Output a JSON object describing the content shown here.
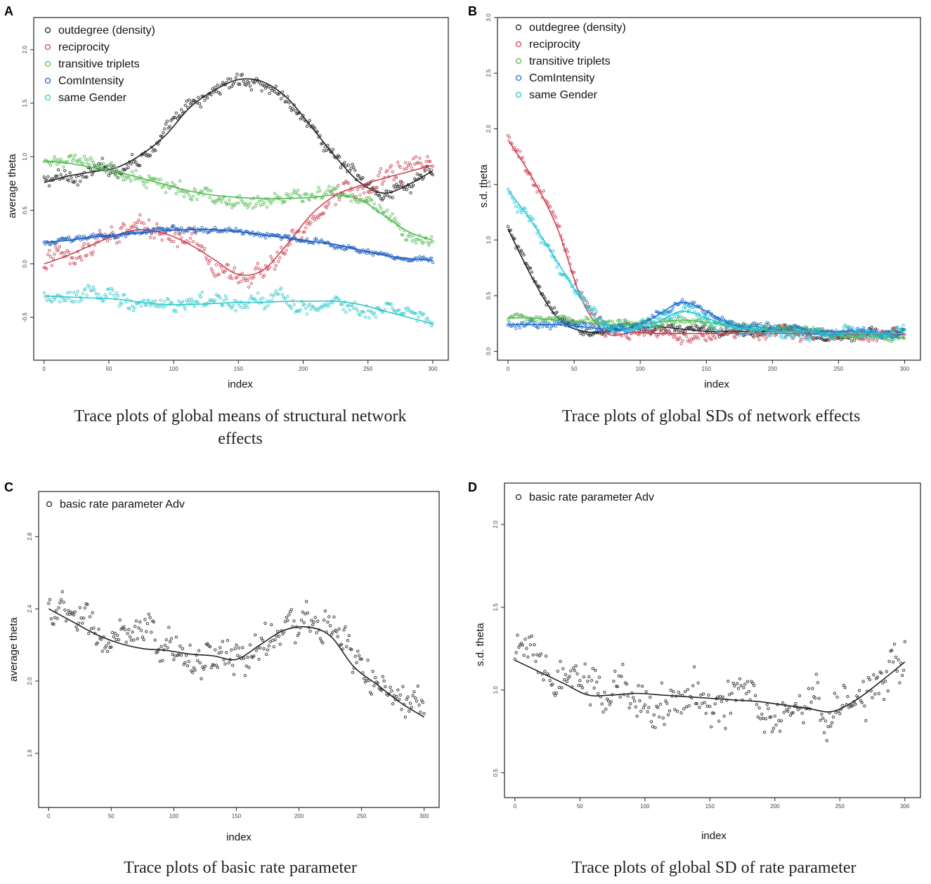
{
  "chart_data": [
    {
      "panel": "A",
      "type": "scatter",
      "caption_lines": [
        "Trace plots of global means of structural network",
        "effects"
      ],
      "xlabel": "index",
      "ylabel": "average theta",
      "xlim": [
        -8,
        312
      ],
      "ylim": [
        -0.9,
        2.3
      ],
      "xticks": [
        0,
        50,
        100,
        150,
        200,
        250,
        300
      ],
      "yticks": [
        -0.5,
        0.0,
        0.5,
        1.0,
        1.5,
        2.0
      ],
      "series": [
        {
          "name": "outdegree (density)",
          "color": "#222222",
          "spread": 0.1,
          "values": [
            0.76,
            0.82,
            0.86,
            0.9,
            1.02,
            1.2,
            1.46,
            1.62,
            1.72,
            1.7,
            1.55,
            1.28,
            1.0,
            0.76,
            0.66,
            0.74,
            0.87
          ]
        },
        {
          "name": "reciprocity",
          "color": "#cc4455",
          "spread": 0.15,
          "values": [
            0.0,
            0.08,
            0.18,
            0.27,
            0.32,
            0.28,
            0.18,
            0.04,
            -0.1,
            -0.06,
            0.18,
            0.46,
            0.64,
            0.73,
            0.8,
            0.86,
            0.92
          ]
        },
        {
          "name": "transitive triplets",
          "color": "#55bb55",
          "spread": 0.1,
          "values": [
            0.96,
            0.94,
            0.9,
            0.86,
            0.8,
            0.74,
            0.68,
            0.64,
            0.62,
            0.61,
            0.61,
            0.62,
            0.64,
            0.6,
            0.45,
            0.3,
            0.22
          ]
        },
        {
          "name": "ComIntensity",
          "color": "#1f5fbf",
          "spread": 0.04,
          "values": [
            0.2,
            0.22,
            0.25,
            0.27,
            0.29,
            0.31,
            0.32,
            0.32,
            0.3,
            0.27,
            0.24,
            0.21,
            0.18,
            0.13,
            0.08,
            0.05,
            0.03
          ]
        },
        {
          "name": "same Gender",
          "color": "#33c8cc",
          "spread": 0.11,
          "values": [
            -0.3,
            -0.31,
            -0.32,
            -0.33,
            -0.36,
            -0.38,
            -0.38,
            -0.37,
            -0.36,
            -0.36,
            -0.35,
            -0.35,
            -0.35,
            -0.38,
            -0.44,
            -0.5,
            -0.56
          ]
        }
      ]
    },
    {
      "panel": "B",
      "type": "scatter",
      "caption_lines": [
        "Trace plots of global SDs of network effects"
      ],
      "xlabel": "index",
      "ylabel": "s.d. theta",
      "xlim": [
        -8,
        312
      ],
      "ylim": [
        -0.08,
        3.0
      ],
      "xticks": [
        0,
        50,
        100,
        150,
        200,
        250,
        300
      ],
      "yticks": [
        0.0,
        0.5,
        1.0,
        1.5,
        2.0,
        2.5,
        3.0
      ],
      "series": [
        {
          "name": "outdegree (density)",
          "color": "#222222",
          "spread": 0.06,
          "values": [
            1.1,
            0.65,
            0.3,
            0.18,
            0.18,
            0.2,
            0.22,
            0.2,
            0.18,
            0.18,
            0.18,
            0.18,
            0.18,
            0.16,
            0.16,
            0.16,
            0.16
          ]
        },
        {
          "name": "reciprocity",
          "color": "#cc4455",
          "spread": 0.08,
          "values": [
            1.9,
            1.55,
            1.1,
            0.45,
            0.16,
            0.17,
            0.16,
            0.16,
            0.16,
            0.16,
            0.16,
            0.16,
            0.16,
            0.15,
            0.15,
            0.15,
            0.15
          ]
        },
        {
          "name": "transitive triplets",
          "color": "#55bb55",
          "spread": 0.06,
          "values": [
            0.3,
            0.3,
            0.28,
            0.26,
            0.24,
            0.24,
            0.26,
            0.28,
            0.26,
            0.24,
            0.22,
            0.2,
            0.18,
            0.16,
            0.14,
            0.13,
            0.12
          ]
        },
        {
          "name": "ComIntensity",
          "color": "#1f6fd0",
          "spread": 0.05,
          "values": [
            0.24,
            0.24,
            0.24,
            0.22,
            0.2,
            0.22,
            0.32,
            0.44,
            0.36,
            0.24,
            0.2,
            0.18,
            0.18,
            0.18,
            0.18,
            0.16,
            0.16
          ]
        },
        {
          "name": "same Gender",
          "color": "#22c8d8",
          "spread": 0.08,
          "values": [
            1.45,
            1.15,
            0.8,
            0.45,
            0.2,
            0.2,
            0.26,
            0.36,
            0.3,
            0.22,
            0.2,
            0.18,
            0.18,
            0.16,
            0.16,
            0.16,
            0.16
          ]
        }
      ]
    },
    {
      "panel": "C",
      "type": "scatter",
      "caption_lines": [
        "Trace plots of basic rate parameter"
      ],
      "xlabel": "index",
      "ylabel": "average theta",
      "xlim": [
        -8,
        312
      ],
      "ylim": [
        1.3,
        3.05
      ],
      "xticks": [
        0,
        50,
        100,
        150,
        200,
        250,
        300
      ],
      "yticks": [
        1.6,
        2.0,
        2.4,
        2.8
      ],
      "series": [
        {
          "name": "basic rate parameter Adv",
          "color": "#222222",
          "spread": 0.16,
          "values": [
            2.4,
            2.33,
            2.26,
            2.21,
            2.18,
            2.17,
            2.15,
            2.14,
            2.12,
            2.2,
            2.28,
            2.3,
            2.25,
            2.08,
            1.98,
            1.88,
            1.8
          ]
        }
      ]
    },
    {
      "panel": "D",
      "type": "scatter",
      "caption_lines": [
        "Trace plots of global SD of rate parameter"
      ],
      "xlabel": "index",
      "ylabel": "s.d. theta",
      "xlim": [
        -8,
        312
      ],
      "ylim": [
        0.35,
        2.25
      ],
      "xticks": [
        0,
        50,
        100,
        150,
        200,
        250,
        300
      ],
      "yticks": [
        0.5,
        1.0,
        1.5,
        2.0
      ],
      "series": [
        {
          "name": "basic rate parameter Adv",
          "color": "#222222",
          "spread": 0.2,
          "values": [
            1.18,
            1.11,
            1.04,
            0.97,
            0.97,
            0.98,
            0.97,
            0.96,
            0.95,
            0.94,
            0.93,
            0.91,
            0.89,
            0.87,
            0.94,
            1.05,
            1.17
          ]
        }
      ]
    }
  ]
}
